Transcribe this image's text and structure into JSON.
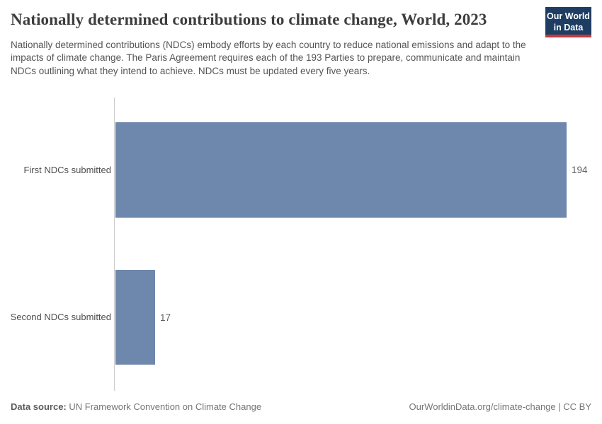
{
  "header": {
    "title": "Nationally determined contributions to climate change, World, 2023",
    "subtitle": "Nationally determined contributions (NDCs) embody efforts by each country to reduce national emissions and adapt to the impacts of climate change. The Paris Agreement requires each of the 193 Parties to prepare, communicate and maintain NDCs outlining what they intend to achieve. NDCs must be updated every five years.",
    "logo": {
      "line1": "Our World",
      "line2": "in Data",
      "bg_color": "#1d3d63",
      "accent_color": "#c5383c"
    }
  },
  "chart_data": {
    "type": "bar",
    "orientation": "horizontal",
    "title": "Nationally determined contributions to climate change, World, 2023",
    "categories": [
      "First NDCs submitted",
      "Second NDCs submitted"
    ],
    "values": [
      194,
      17
    ],
    "value_labels": [
      "194",
      "17"
    ],
    "xlabel": "",
    "ylabel": "",
    "xlim": [
      0,
      194
    ],
    "grid": false,
    "legend": "none",
    "bar_color": "#6e87ad",
    "axis_color": "#cccccc"
  },
  "footer": {
    "source_label": "Data source:",
    "source_value": "UN Framework Convention on Climate Change",
    "url": "OurWorldinData.org/climate-change",
    "separator": " | ",
    "license": "CC BY"
  }
}
